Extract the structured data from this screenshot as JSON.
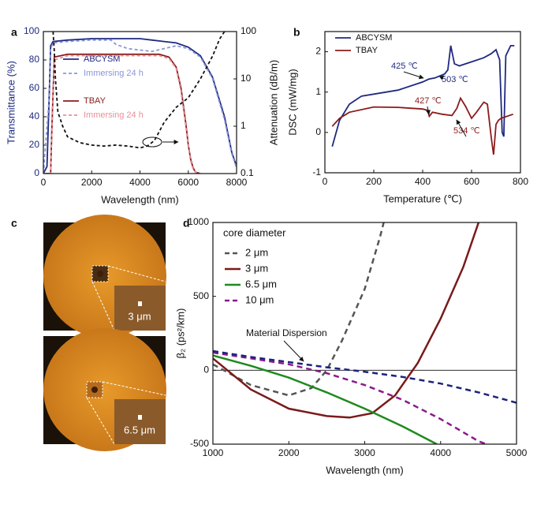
{
  "chart_data": [
    {
      "type": "line",
      "panel_label": "a",
      "xlabel": "Wavelength (nm)",
      "ylabel": "Transmittance (%)",
      "y2label": "Attenuation (dB/m)",
      "xlim": [
        0,
        8000
      ],
      "xticks": [
        0,
        2000,
        4000,
        6000,
        8000
      ],
      "ylim": [
        0,
        100
      ],
      "yticks": [
        0,
        20,
        40,
        60,
        80,
        100
      ],
      "y2lim": [
        0.1,
        100
      ],
      "y2ticks": [
        0.1,
        1,
        10,
        100
      ],
      "y2log": true,
      "series": [
        {
          "name": "ABCYSM",
          "color": "#1f2a80",
          "x": [
            0,
            150,
            250,
            300,
            400,
            1000,
            2000,
            3000,
            4000,
            4500,
            5000,
            5500,
            6000,
            6500,
            7000,
            7500,
            7800,
            8000
          ],
          "values": [
            0,
            5,
            60,
            90,
            93,
            94,
            95,
            95,
            95,
            94,
            93,
            92,
            89,
            83,
            68,
            40,
            15,
            5
          ]
        },
        {
          "name": "Immersing 24 h",
          "color": "#8a96d8",
          "dash": true,
          "x": [
            0,
            250,
            300,
            400,
            1000,
            2000,
            2800,
            3000,
            3500,
            4000,
            4500,
            5000,
            5500,
            6000,
            6500,
            7000,
            7500,
            7800,
            8000
          ],
          "values": [
            0,
            55,
            88,
            92,
            93,
            94,
            94,
            91,
            88,
            87,
            86,
            88,
            90,
            88,
            82,
            67,
            38,
            14,
            4
          ]
        },
        {
          "name": "TBAY",
          "color": "#8b1c1c",
          "x": [
            0,
            300,
            350,
            450,
            1000,
            2000,
            3000,
            4000,
            4800,
            5200,
            5500,
            5700,
            5900,
            6000,
            6100,
            6200,
            6300,
            6500
          ],
          "values": [
            0,
            0,
            30,
            82,
            84,
            84,
            84,
            84,
            84,
            82,
            75,
            60,
            35,
            20,
            10,
            4,
            1,
            0
          ]
        },
        {
          "name": "Immersing 24 h",
          "color": "#e8909a",
          "dash": true,
          "x": [
            0,
            300,
            350,
            450,
            1000,
            2000,
            3000,
            4000,
            4800,
            5200,
            5500,
            5700,
            5900,
            6000,
            6100,
            6200,
            6300,
            6500
          ],
          "values": [
            0,
            0,
            28,
            80,
            83,
            83,
            83,
            83,
            83,
            81,
            74,
            58,
            33,
            19,
            9,
            3,
            1,
            0
          ]
        },
        {
          "color": "#111111",
          "dash": true,
          "axis": "y2",
          "x": [
            400,
            450,
            500,
            600,
            800,
            1000,
            1500,
            2000,
            2500,
            3000,
            3500,
            4000,
            4300,
            4600,
            5000,
            5500,
            6000,
            6500,
            7000,
            7300,
            7500
          ],
          "values": [
            100,
            40,
            10,
            2,
            1,
            0.6,
            0.45,
            0.4,
            0.38,
            0.4,
            0.38,
            0.35,
            0.38,
            0.5,
            1.2,
            2.5,
            4,
            10,
            30,
            70,
            100
          ]
        }
      ]
    },
    {
      "type": "line",
      "panel_label": "b",
      "xlabel": "Temperature (℃)",
      "ylabel": "DSC (mW/mg)",
      "xlim": [
        0,
        800
      ],
      "xticks": [
        0,
        200,
        400,
        600,
        800
      ],
      "ylim": [
        -1,
        2.5
      ],
      "yticks": [
        -1,
        0,
        1,
        2
      ],
      "annotations": [
        "425 ℃",
        "503 ℃",
        "427 ℃",
        "534 ℃"
      ],
      "series": [
        {
          "name": "ABCYSM",
          "color": "#1f2a80",
          "x": [
            30,
            60,
            100,
            150,
            200,
            300,
            400,
            425,
            450,
            490,
            503,
            515,
            530,
            550,
            600,
            650,
            680,
            700,
            715,
            725,
            732,
            740,
            760,
            775
          ],
          "values": [
            -0.35,
            0.3,
            0.7,
            0.9,
            0.95,
            1.05,
            1.25,
            1.32,
            1.35,
            1.45,
            1.55,
            2.15,
            1.7,
            1.65,
            1.75,
            1.85,
            1.95,
            2.05,
            1.8,
            0,
            -0.1,
            1.9,
            2.15,
            2.15
          ]
        },
        {
          "name": "TBAY",
          "color": "#8b1c1c",
          "x": [
            30,
            60,
            100,
            200,
            300,
            400,
            420,
            427,
            440,
            480,
            520,
            540,
            555,
            575,
            600,
            620,
            650,
            665,
            680,
            690,
            700,
            710,
            720,
            770
          ],
          "values": [
            0.15,
            0.35,
            0.5,
            0.63,
            0.62,
            0.58,
            0.55,
            0.4,
            0.5,
            0.45,
            0.42,
            0.6,
            0.85,
            0.65,
            0.35,
            0.5,
            0.75,
            0.7,
            -0.1,
            -0.55,
            0.2,
            0.3,
            0.35,
            0.45
          ]
        }
      ]
    },
    {
      "type": "image",
      "panel_label": "c",
      "labels": [
        "3 μm",
        "6.5 μm"
      ]
    },
    {
      "type": "line",
      "panel_label": "d",
      "xlabel": "Wavelength (nm)",
      "ylabel": "β₂ (ps²/km)",
      "legend_title": "core diameter",
      "xlim": [
        1000,
        5000
      ],
      "xticks": [
        1000,
        2000,
        3000,
        4000,
        5000
      ],
      "ylim": [
        -500,
        1000
      ],
      "yticks": [
        -500,
        0,
        500,
        1000
      ],
      "series": [
        {
          "name": "2 μm",
          "color": "#555555",
          "dash": true,
          "x": [
            1000,
            1500,
            2000,
            2300,
            2500,
            2700,
            3000,
            3200,
            3250
          ],
          "values": [
            40,
            -100,
            -170,
            -120,
            0,
            200,
            550,
            900,
            1000
          ]
        },
        {
          "name": "3 μm",
          "color": "#7a1a1a",
          "x": [
            1000,
            1500,
            2000,
            2500,
            2800,
            3100,
            3400,
            3700,
            4000,
            4300,
            4500
          ],
          "values": [
            80,
            -130,
            -260,
            -310,
            -320,
            -290,
            -170,
            50,
            350,
            700,
            1000
          ]
        },
        {
          "name": "6.5 μm",
          "color": "#1e8a1e",
          "x": [
            1000,
            1500,
            2000,
            2500,
            3000,
            3500,
            3950
          ],
          "values": [
            100,
            30,
            -50,
            -150,
            -260,
            -380,
            -500
          ]
        },
        {
          "name": "10 μm",
          "color": "#8b1a8b",
          "dash": true,
          "x": [
            1000,
            1500,
            2000,
            2500,
            3000,
            3500,
            4000,
            4500,
            4600
          ],
          "values": [
            120,
            80,
            40,
            -20,
            -100,
            -200,
            -330,
            -480,
            -500
          ]
        },
        {
          "name": "Material Dispersion",
          "legend": false,
          "color": "#1a237e",
          "dash": true,
          "x": [
            1000,
            1500,
            2000,
            2500,
            3000,
            3500,
            4000,
            4500,
            5000
          ],
          "values": [
            130,
            90,
            55,
            20,
            -10,
            -45,
            -90,
            -150,
            -220
          ]
        }
      ]
    }
  ]
}
